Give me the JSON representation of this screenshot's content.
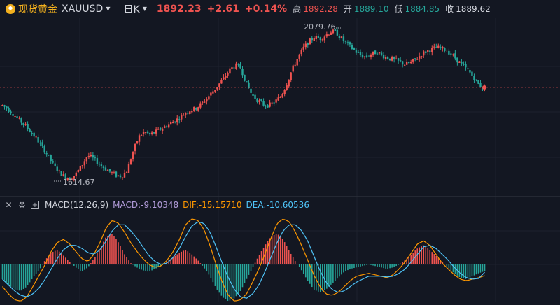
{
  "header": {
    "symbol_name": "现货黄金",
    "symbol_code": "XAUUSD",
    "period": "日K",
    "last_price": "1892.23",
    "change": "+2.61",
    "change_pct": "+0.14%",
    "high_label": "高",
    "high_value": "1892.28",
    "open_label": "开",
    "open_value": "1889.10",
    "low_label": "低",
    "low_value": "1884.85",
    "close_label": "收",
    "close_value": "1889.62"
  },
  "annotations": {
    "max_label": "2079.76",
    "min_label": "1614.67"
  },
  "macd": {
    "title": "MACD(12,26,9)",
    "macd_label": "MACD:-9.10348",
    "dif_label": "DIF:-15.15710",
    "dea_label": "DEA:-10.60536"
  },
  "colors": {
    "up": "#ef5350",
    "down": "#26a69a",
    "dif": "#ff9800",
    "dea": "#4fc3f7",
    "macd": "#b39ddb",
    "accent": "#f2b01e"
  },
  "icons": [
    "gold-coin-icon",
    "chevron-down-icon",
    "close-icon",
    "settings-icon",
    "add-icon"
  ],
  "chart_data": {
    "type": "candlestick",
    "price_path": [
      1840,
      1828,
      1812,
      1795,
      1780,
      1760,
      1740,
      1715,
      1690,
      1660,
      1640,
      1625,
      1622,
      1635,
      1660,
      1690,
      1680,
      1665,
      1652,
      1640,
      1630,
      1628,
      1645,
      1700,
      1745,
      1760,
      1752,
      1760,
      1770,
      1780,
      1790,
      1800,
      1815,
      1825,
      1830,
      1843,
      1860,
      1880,
      1900,
      1920,
      1945,
      1960,
      1952,
      1905,
      1870,
      1855,
      1842,
      1840,
      1850,
      1865,
      1900,
      1945,
      1980,
      2010,
      2030,
      2045,
      2040,
      2050,
      2062,
      2055,
      2035,
      2020,
      2005,
      1990,
      1985,
      1992,
      2000,
      1988,
      1982,
      1975,
      1970,
      1962,
      1968,
      1980,
      1995,
      2003,
      2010,
      2012,
      2006,
      1995,
      1978,
      1960,
      1945,
      1925,
      1900,
      1890
    ],
    "price_axis": {
      "min": 1614.67,
      "max": 2079.76
    },
    "macd_path": [
      -20,
      -28,
      -34,
      -36,
      -30,
      -18,
      -8,
      6,
      16,
      20,
      12,
      4,
      -4,
      -10,
      -4,
      8,
      22,
      38,
      42,
      30,
      14,
      2,
      -4,
      -8,
      -10,
      -6,
      -2,
      4,
      10,
      16,
      20,
      14,
      6,
      -4,
      -16,
      -32,
      -44,
      -50,
      -46,
      -36,
      -20,
      -4,
      12,
      26,
      38,
      42,
      34,
      18,
      4,
      -8,
      -22,
      -34,
      -38,
      -34,
      -26,
      -18,
      -10,
      -6,
      -4,
      -2,
      0,
      -2,
      -4,
      -6,
      -4,
      0,
      6,
      14,
      22,
      26,
      20,
      12,
      4,
      -4,
      -12,
      -18,
      -20,
      -16,
      -12,
      -9.1
    ],
    "dif_path": [
      -30,
      -40,
      -48,
      -50,
      -44,
      -30,
      -15,
      0,
      18,
      30,
      34,
      28,
      18,
      8,
      4,
      14,
      30,
      50,
      60,
      56,
      44,
      30,
      18,
      8,
      0,
      -4,
      -2,
      6,
      18,
      34,
      54,
      62,
      60,
      48,
      26,
      0,
      -24,
      -42,
      -50,
      -48,
      -40,
      -24,
      -6,
      14,
      36,
      56,
      62,
      58,
      44,
      26,
      6,
      -14,
      -30,
      -40,
      -42,
      -38,
      -30,
      -22,
      -16,
      -14,
      -12,
      -14,
      -16,
      -18,
      -14,
      -6,
      4,
      16,
      28,
      32,
      26,
      14,
      2,
      -6,
      -14,
      -20,
      -22,
      -20,
      -18,
      -15.16
    ],
    "dea_path": [
      -20,
      -28,
      -36,
      -42,
      -44,
      -40,
      -32,
      -20,
      -6,
      8,
      20,
      26,
      26,
      22,
      16,
      14,
      20,
      32,
      46,
      54,
      54,
      46,
      36,
      24,
      12,
      4,
      0,
      2,
      10,
      22,
      38,
      52,
      58,
      56,
      44,
      24,
      2,
      -18,
      -34,
      -44,
      -46,
      -40,
      -28,
      -10,
      10,
      30,
      46,
      54,
      54,
      46,
      32,
      12,
      -8,
      -24,
      -34,
      -38,
      -36,
      -30,
      -24,
      -20,
      -16,
      -16,
      -16,
      -17,
      -16,
      -12,
      -6,
      4,
      14,
      24,
      26,
      22,
      14,
      6,
      -4,
      -12,
      -18,
      -20,
      -19,
      -10.61
    ]
  }
}
